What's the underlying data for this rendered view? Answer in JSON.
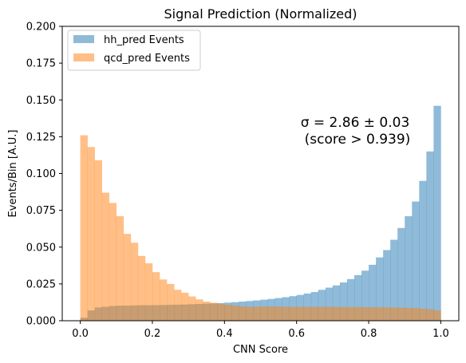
{
  "chart_data": {
    "type": "histogram",
    "title": "Signal Prediction (Normalized)",
    "xlabel": "CNN Score",
    "ylabel": "Events/Bin [A.U.]",
    "xlim": [
      -0.05,
      1.05
    ],
    "ylim": [
      0.0,
      0.2
    ],
    "xticks": [
      "0.0",
      "0.2",
      "0.4",
      "0.6",
      "0.8",
      "1.0"
    ],
    "yticks": [
      "0.000",
      "0.025",
      "0.050",
      "0.075",
      "0.100",
      "0.125",
      "0.150",
      "0.175",
      "0.200"
    ],
    "grid": false,
    "legend_position": "top-left",
    "bin_edges_start": 0.0,
    "bin_width": 0.02,
    "series": [
      {
        "name": "hh_pred Events",
        "color": "#1f77b4",
        "opacity": 0.5,
        "values": [
          0.002,
          0.007,
          0.009,
          0.0095,
          0.01,
          0.0102,
          0.0103,
          0.0104,
          0.0105,
          0.0105,
          0.0106,
          0.0107,
          0.0108,
          0.0109,
          0.011,
          0.0112,
          0.0114,
          0.0116,
          0.0118,
          0.012,
          0.0123,
          0.0126,
          0.013,
          0.0134,
          0.0138,
          0.0143,
          0.0148,
          0.0154,
          0.016,
          0.0167,
          0.0175,
          0.0185,
          0.0195,
          0.021,
          0.0225,
          0.024,
          0.026,
          0.0283,
          0.031,
          0.034,
          0.038,
          0.043,
          0.048,
          0.055,
          0.063,
          0.071,
          0.081,
          0.095,
          0.115,
          0.146
        ]
      },
      {
        "name": "qcd_pred Events",
        "color": "#ff7f0e",
        "opacity": 0.5,
        "values": [
          0.126,
          0.118,
          0.109,
          0.087,
          0.08,
          0.071,
          0.059,
          0.053,
          0.044,
          0.039,
          0.033,
          0.028,
          0.025,
          0.021,
          0.019,
          0.0165,
          0.0145,
          0.013,
          0.0122,
          0.0115,
          0.0108,
          0.0103,
          0.0098,
          0.0094,
          0.0095,
          0.0097,
          0.0097,
          0.0096,
          0.0095,
          0.0094,
          0.0094,
          0.0094,
          0.0094,
          0.0094,
          0.0094,
          0.0094,
          0.0093,
          0.0093,
          0.0093,
          0.0092,
          0.0092,
          0.0091,
          0.0091,
          0.009,
          0.0089,
          0.0088,
          0.0086,
          0.0082,
          0.0078,
          0.007
        ]
      }
    ],
    "annotation": {
      "line1": "σ = 2.86 ± 0.03",
      "line2": "(score > 0.939)"
    }
  }
}
